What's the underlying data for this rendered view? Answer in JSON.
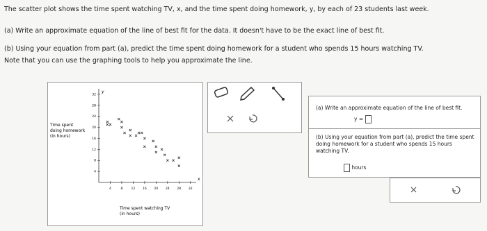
{
  "question": {
    "intro": "The scatter plot shows the time spent watching TV, x, and the time spent doing homework, y, by each of 23 students last week.",
    "part_a": "(a) Write an approximate equation of the line of best fit for the data. It doesn't have to be the exact line of best fit.",
    "part_b": "(b) Using your equation from part (a), predict the time spent doing homework for a student who spends 15 hours watching TV.",
    "note": "Note that you can use the graphing tools to help you approximate the line."
  },
  "graph": {
    "type": "scatter",
    "y_axis_letter": "y",
    "x_axis_letter": "x",
    "y_label_lines": [
      "Time spent",
      "doing homework",
      "(in hours)"
    ],
    "x_label_lines": [
      "Time spent watching TV",
      "(in hours)"
    ],
    "xlim": [
      0,
      34
    ],
    "ylim": [
      0,
      34
    ],
    "xticks": [
      4,
      8,
      12,
      16,
      20,
      24,
      28,
      32
    ],
    "yticks": [
      4,
      8,
      12,
      16,
      20,
      24,
      28,
      32
    ],
    "x": [
      3,
      3,
      4,
      7,
      8,
      8,
      9,
      11,
      11,
      13,
      14,
      15,
      16,
      16,
      19,
      20,
      20,
      22,
      23,
      24,
      26,
      28,
      28
    ],
    "values": [
      22,
      21,
      21,
      23,
      22,
      20,
      18,
      19,
      17,
      17,
      18,
      18,
      16,
      13,
      15,
      13,
      11,
      12,
      10,
      8,
      8,
      9,
      6
    ],
    "color": "#333333"
  },
  "answer_panel": {
    "part_a": "(a) Write an approximate equation of the line of best fit.",
    "equation_prefix": "y =",
    "part_b": "(b) Using your equation from part (a), predict the time spent doing homework for a student who spends 15 hours watching TV.",
    "unit": "hours"
  }
}
